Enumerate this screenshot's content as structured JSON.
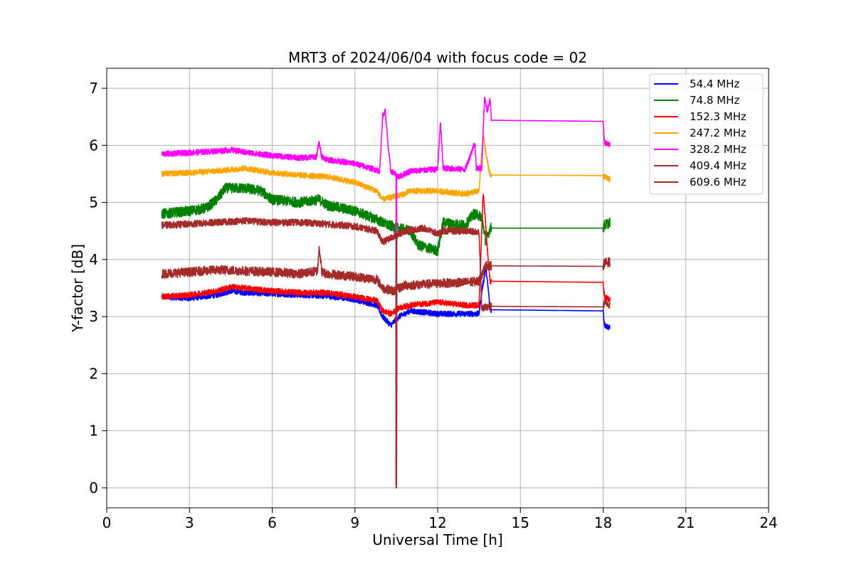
{
  "chart_data": {
    "type": "line",
    "title": "MRT3 of 2024/06/04 with focus code = 02",
    "xlabel": "Universal Time [h]",
    "ylabel": "Y-factor [dB]",
    "xlim": [
      0,
      24
    ],
    "ylim": [
      -0.35,
      7.35
    ],
    "xticks": [
      0,
      3,
      6,
      9,
      12,
      15,
      18,
      21,
      24
    ],
    "xtick_labels": [
      "0",
      "3",
      "6",
      "9",
      "12",
      "15",
      "18",
      "21",
      "24"
    ],
    "yticks": [
      0,
      1,
      2,
      3,
      4,
      5,
      6,
      7
    ],
    "ytick_labels": [
      "0",
      "1",
      "2",
      "3",
      "4",
      "5",
      "6",
      "7"
    ],
    "grid": true,
    "legend_position": "top-right",
    "series": [
      {
        "name": " 54.4 MHz",
        "color": "#0000ff",
        "noise": 0.05,
        "points": [
          [
            2.0,
            3.35
          ],
          [
            3.0,
            3.32
          ],
          [
            4.0,
            3.38
          ],
          [
            4.5,
            3.45
          ],
          [
            5.0,
            3.42
          ],
          [
            6.0,
            3.4
          ],
          [
            7.0,
            3.38
          ],
          [
            8.0,
            3.36
          ],
          [
            9.0,
            3.3
          ],
          [
            9.8,
            3.2
          ],
          [
            10.0,
            3.0
          ],
          [
            10.3,
            2.85
          ],
          [
            10.6,
            3.0
          ],
          [
            11.0,
            3.1
          ],
          [
            12.0,
            3.05
          ],
          [
            13.0,
            3.05
          ],
          [
            13.5,
            3.05
          ],
          [
            13.6,
            3.45
          ],
          [
            13.75,
            3.85
          ],
          [
            13.85,
            3.4
          ],
          [
            13.9,
            3.12
          ],
          [
            18.0,
            3.1
          ],
          [
            18.05,
            2.85
          ],
          [
            18.25,
            2.8
          ]
        ]
      },
      {
        "name": " 74.8 MHz",
        "color": "#008000",
        "noise": 0.09,
        "points": [
          [
            2.0,
            4.8
          ],
          [
            3.0,
            4.85
          ],
          [
            3.6,
            4.9
          ],
          [
            4.0,
            5.05
          ],
          [
            4.3,
            5.25
          ],
          [
            5.0,
            5.25
          ],
          [
            5.6,
            5.2
          ],
          [
            6.0,
            5.05
          ],
          [
            7.0,
            5.0
          ],
          [
            7.7,
            5.05
          ],
          [
            8.0,
            4.95
          ],
          [
            9.0,
            4.85
          ],
          [
            9.8,
            4.7
          ],
          [
            10.2,
            4.6
          ],
          [
            10.6,
            4.55
          ],
          [
            11.0,
            4.5
          ],
          [
            11.3,
            4.25
          ],
          [
            12.0,
            4.15
          ],
          [
            12.2,
            4.65
          ],
          [
            13.0,
            4.6
          ],
          [
            13.3,
            4.8
          ],
          [
            13.6,
            4.75
          ],
          [
            13.75,
            4.3
          ],
          [
            13.9,
            4.55
          ],
          [
            18.0,
            4.55
          ],
          [
            18.05,
            4.6
          ],
          [
            18.25,
            4.65
          ]
        ]
      },
      {
        "name": " 152.3 MHz",
        "color": "#ff0000",
        "noise": 0.05,
        "points": [
          [
            2.0,
            3.35
          ],
          [
            3.0,
            3.38
          ],
          [
            4.0,
            3.45
          ],
          [
            4.5,
            3.52
          ],
          [
            5.0,
            3.5
          ],
          [
            6.0,
            3.45
          ],
          [
            7.0,
            3.42
          ],
          [
            8.0,
            3.42
          ],
          [
            9.0,
            3.35
          ],
          [
            9.8,
            3.28
          ],
          [
            10.0,
            3.1
          ],
          [
            10.3,
            3.05
          ],
          [
            10.6,
            3.15
          ],
          [
            11.0,
            3.2
          ],
          [
            12.0,
            3.25
          ],
          [
            13.0,
            3.2
          ],
          [
            13.5,
            3.2
          ],
          [
            13.65,
            5.2
          ],
          [
            13.8,
            4.2
          ],
          [
            13.9,
            3.62
          ],
          [
            18.0,
            3.6
          ],
          [
            18.05,
            3.35
          ],
          [
            18.25,
            3.3
          ]
        ]
      },
      {
        "name": " 247.2 MHz",
        "color": "#ffa500",
        "noise": 0.05,
        "points": [
          [
            2.0,
            5.5
          ],
          [
            3.0,
            5.52
          ],
          [
            4.0,
            5.55
          ],
          [
            5.0,
            5.6
          ],
          [
            6.0,
            5.52
          ],
          [
            7.0,
            5.48
          ],
          [
            8.0,
            5.45
          ],
          [
            9.0,
            5.35
          ],
          [
            9.8,
            5.2
          ],
          [
            10.0,
            5.05
          ],
          [
            10.4,
            5.1
          ],
          [
            10.8,
            5.15
          ],
          [
            11.0,
            5.2
          ],
          [
            12.0,
            5.2
          ],
          [
            13.0,
            5.15
          ],
          [
            13.5,
            5.2
          ],
          [
            13.65,
            6.2
          ],
          [
            13.75,
            5.85
          ],
          [
            13.9,
            5.48
          ],
          [
            18.0,
            5.47
          ],
          [
            18.05,
            5.45
          ],
          [
            18.25,
            5.4
          ]
        ]
      },
      {
        "name": " 328.2 MHz",
        "color": "#ff00ff",
        "noise": 0.05,
        "points": [
          [
            2.0,
            5.85
          ],
          [
            3.0,
            5.87
          ],
          [
            4.0,
            5.9
          ],
          [
            4.5,
            5.92
          ],
          [
            5.0,
            5.88
          ],
          [
            6.0,
            5.82
          ],
          [
            7.0,
            5.78
          ],
          [
            7.6,
            5.8
          ],
          [
            7.7,
            6.05
          ],
          [
            7.8,
            5.8
          ],
          [
            8.0,
            5.75
          ],
          [
            9.0,
            5.68
          ],
          [
            9.9,
            5.55
          ],
          [
            10.0,
            6.5
          ],
          [
            10.1,
            6.6
          ],
          [
            10.2,
            6.0
          ],
          [
            10.3,
            5.55
          ],
          [
            10.6,
            5.45
          ],
          [
            11.0,
            5.55
          ],
          [
            12.0,
            5.58
          ],
          [
            12.1,
            6.4
          ],
          [
            12.2,
            5.6
          ],
          [
            13.0,
            5.58
          ],
          [
            13.35,
            6.05
          ],
          [
            13.4,
            5.6
          ],
          [
            13.6,
            5.6
          ],
          [
            13.7,
            6.85
          ],
          [
            13.8,
            6.6
          ],
          [
            13.9,
            6.8
          ],
          [
            13.95,
            6.44
          ],
          [
            18.0,
            6.42
          ],
          [
            18.05,
            6.05
          ],
          [
            18.25,
            6.0
          ]
        ]
      },
      {
        "name": " 409.4 MHz",
        "color": "#a52a2a",
        "noise": 0.08,
        "points": [
          [
            2.0,
            3.75
          ],
          [
            3.0,
            3.78
          ],
          [
            4.0,
            3.82
          ],
          [
            5.0,
            3.8
          ],
          [
            6.0,
            3.78
          ],
          [
            7.0,
            3.75
          ],
          [
            7.65,
            3.8
          ],
          [
            7.7,
            4.25
          ],
          [
            7.8,
            3.78
          ],
          [
            8.0,
            3.75
          ],
          [
            9.0,
            3.7
          ],
          [
            9.8,
            3.65
          ],
          [
            10.0,
            3.5
          ],
          [
            10.4,
            3.45
          ],
          [
            10.8,
            3.55
          ],
          [
            11.0,
            3.55
          ],
          [
            12.0,
            3.58
          ],
          [
            13.0,
            3.6
          ],
          [
            13.5,
            3.62
          ],
          [
            13.75,
            3.9
          ],
          [
            13.9,
            3.89
          ],
          [
            18.0,
            3.88
          ],
          [
            18.05,
            3.95
          ],
          [
            18.25,
            3.95
          ]
        ]
      },
      {
        "name": " 609.6 MHz",
        "color": "#a52a2a",
        "noise": 0.06,
        "points": [
          [
            2.0,
            4.6
          ],
          [
            3.0,
            4.62
          ],
          [
            4.0,
            4.65
          ],
          [
            5.0,
            4.68
          ],
          [
            6.0,
            4.65
          ],
          [
            7.0,
            4.65
          ],
          [
            8.0,
            4.62
          ],
          [
            9.0,
            4.58
          ],
          [
            9.8,
            4.5
          ],
          [
            10.0,
            4.3
          ],
          [
            10.4,
            4.4
          ],
          [
            10.8,
            4.5
          ],
          [
            11.5,
            4.55
          ],
          [
            12.0,
            4.45
          ],
          [
            12.2,
            4.5
          ],
          [
            13.0,
            4.5
          ],
          [
            13.5,
            4.48
          ],
          [
            13.6,
            3.15
          ],
          [
            13.9,
            3.18
          ],
          [
            18.0,
            3.17
          ],
          [
            18.05,
            3.25
          ],
          [
            18.25,
            3.2
          ]
        ]
      }
    ],
    "dropout": {
      "x": 10.5,
      "y": 0.0
    }
  }
}
